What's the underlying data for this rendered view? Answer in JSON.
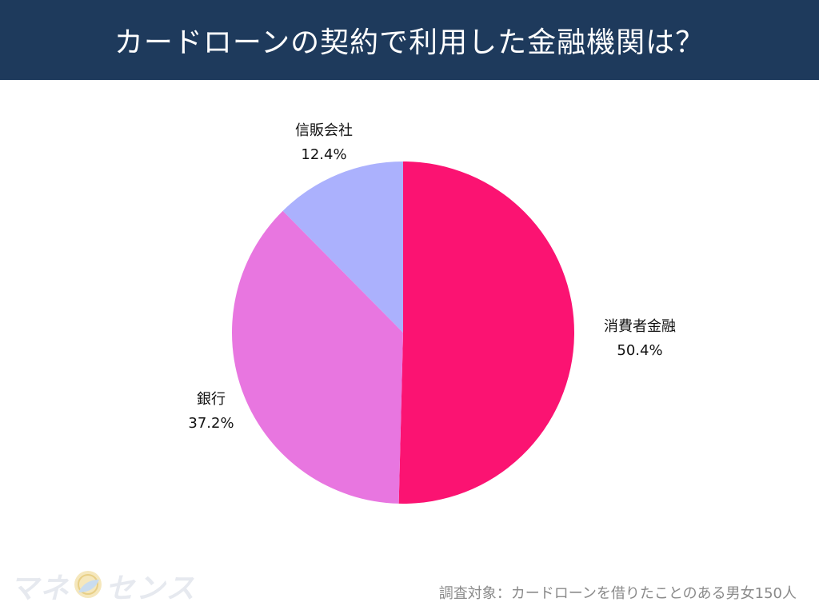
{
  "header": {
    "title": "カードローンの契約で利用した金融機関は？",
    "background": "#1e3a5c"
  },
  "chart_data": {
    "type": "pie",
    "title": "カードローンの契約で利用した金融機関は？",
    "start_angle": "12 o'clock, clockwise",
    "slices": [
      {
        "name": "消費者金融",
        "label": "50.4%",
        "value": 50.4,
        "color": "#fb1372"
      },
      {
        "name": "銀行",
        "label": "37.2%",
        "value": 37.2,
        "color": "#e876e0"
      },
      {
        "name": "信販会社",
        "label": "12.4%",
        "value": 12.4,
        "color": "#abb1fd"
      }
    ]
  },
  "logo": {
    "part1": "マネ",
    "part2": "センス",
    "icon": "coin-leaf-icon"
  },
  "footnote": "調査対象：カードローンを借りたことのある男女150人"
}
